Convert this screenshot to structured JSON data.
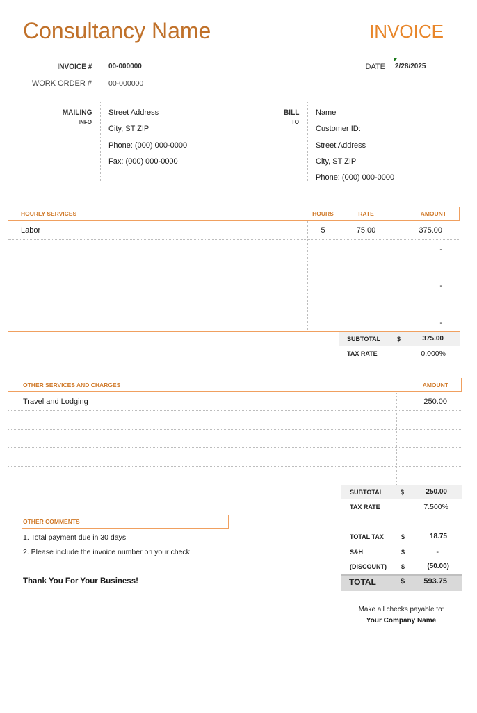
{
  "header": {
    "company_name": "Consultancy Name",
    "doc_title": "INVOICE"
  },
  "meta": {
    "invoice_label": "INVOICE #",
    "invoice_value": "00-000000",
    "work_order_label": "WORK ORDER #",
    "work_order_value": "00-000000",
    "date_label": "DATE",
    "date_value": "2/28/2025"
  },
  "mailing": {
    "label": "MAILING",
    "sublabel": "INFO",
    "lines": [
      "Street Address",
      "City, ST  ZIP",
      "Phone: (000) 000-0000",
      "Fax: (000) 000-0000"
    ]
  },
  "bill_to": {
    "label": "BILL",
    "sublabel": "TO",
    "lines": [
      "Name",
      "Customer ID:",
      "Street Address",
      "City, ST  ZIP",
      "Phone: (000) 000-0000"
    ]
  },
  "hourly": {
    "headers": {
      "description": "HOURLY SERVICES",
      "hours": "HOURS",
      "rate": "RATE",
      "amount": "AMOUNT"
    },
    "rows": [
      {
        "description": "Labor",
        "hours": "5",
        "rate": "75.00",
        "amount": "375.00"
      },
      {
        "description": "",
        "hours": "",
        "rate": "",
        "amount": "-"
      },
      {
        "description": "",
        "hours": "",
        "rate": "",
        "amount": ""
      },
      {
        "description": "",
        "hours": "",
        "rate": "",
        "amount": "-"
      },
      {
        "description": "",
        "hours": "",
        "rate": "",
        "amount": ""
      },
      {
        "description": "",
        "hours": "",
        "rate": "",
        "amount": "-"
      }
    ],
    "subtotal_label": "SUBTOTAL",
    "currency": "$",
    "subtotal": "375.00",
    "tax_rate_label": "TAX RATE",
    "tax_rate": "0.000%"
  },
  "other": {
    "headers": {
      "description": "OTHER SERVICES AND CHARGES",
      "amount": "AMOUNT"
    },
    "rows": [
      {
        "description": "Travel and Lodging",
        "amount": "250.00"
      },
      {
        "description": "",
        "amount": ""
      },
      {
        "description": "",
        "amount": ""
      },
      {
        "description": "",
        "amount": ""
      },
      {
        "description": "",
        "amount": ""
      }
    ],
    "subtotal_label": "SUBTOTAL",
    "currency": "$",
    "subtotal": "250.00",
    "tax_rate_label": "TAX RATE",
    "tax_rate": "7.500%"
  },
  "comments": {
    "header": "OTHER COMMENTS",
    "lines": [
      "1. Total payment due in 30 days",
      "2. Please include the invoice number on your check"
    ],
    "thanks": "Thank You For Your Business!"
  },
  "totals": {
    "total_tax_label": "TOTAL TAX",
    "total_tax": "18.75",
    "sh_label": "S&H",
    "sh": "-",
    "discount_label": "(DISCOUNT)",
    "discount": "(50.00)",
    "total_label": "TOTAL",
    "total": "593.75",
    "currency": "$"
  },
  "footer": {
    "payable_text": "Make all checks payable to:",
    "payable_name": "Your Company Name"
  },
  "colors": {
    "accent": "#e8862a",
    "title": "#c0712a",
    "header_text": "#d07a2a",
    "rule": "#f0a060"
  }
}
